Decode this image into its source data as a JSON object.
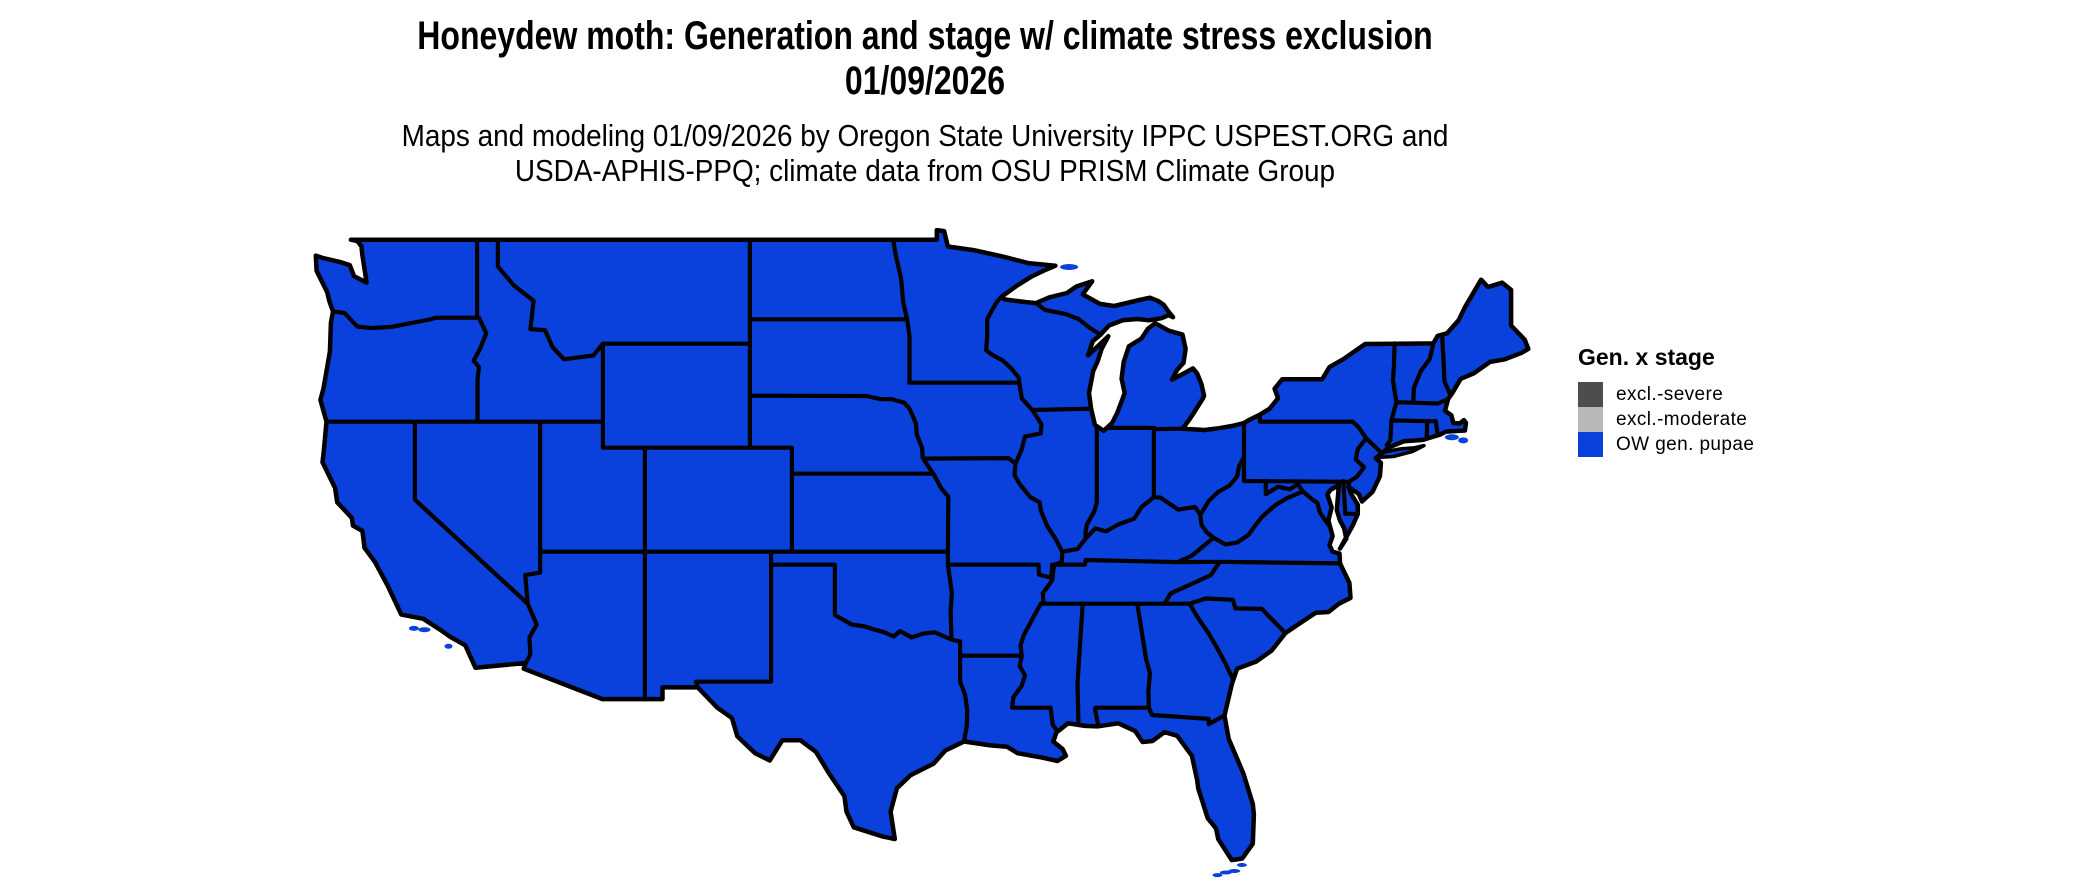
{
  "header": {
    "title_line1": "Honeydew moth: Generation and stage w/ climate stress exclusion",
    "title_line2": "01/09/2026",
    "subtitle_line1": "Maps and modeling 01/09/2026 by Oregon State University IPPC USPEST.ORG and",
    "subtitle_line2": "USDA-APHIS-PPQ; climate data from OSU PRISM Climate Group"
  },
  "legend": {
    "title": "Gen. x stage",
    "items": [
      {
        "label": "excl.-severe",
        "color": "#4d4d4d"
      },
      {
        "label": "excl.-moderate",
        "color": "#b8b8b8"
      },
      {
        "label": "OW gen. pupae",
        "color": "#0a41dc"
      }
    ]
  },
  "map": {
    "region": "Contiguous United States with state borders",
    "depicted_value": "OW gen. pupae (entire CONUS shown in blue)",
    "fill_color": "#0a41dc",
    "border_color": "#000000",
    "background": "#ffffff"
  }
}
